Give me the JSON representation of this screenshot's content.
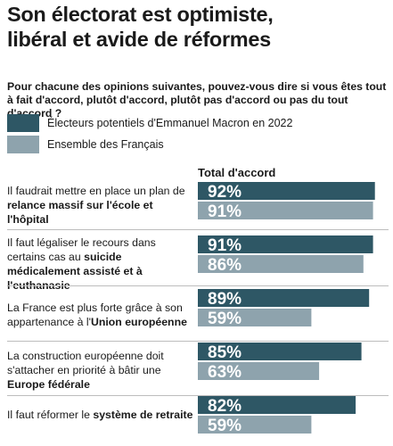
{
  "title": [
    "Son électorat est optimiste,",
    "libéral et avide de réformes"
  ],
  "question": "Pour chacune des opinions suivantes, pouvez-vous dire si vous êtes tout à fait d'accord, plutôt d'accord, plutôt pas d'accord ou pas du tout d'accord ?",
  "colors": {
    "macron": "#2e5765",
    "france": "#8ea3ad"
  },
  "chart_data": {
    "type": "bar",
    "orientation": "horizontal",
    "header": "Total d'accord",
    "xlim": [
      0,
      100
    ],
    "categories": [
      [
        {
          "t": "Il faudrait mettre en place un plan de "
        },
        {
          "t": "relance massif sur l'école et l'hôpital",
          "b": true
        }
      ],
      [
        {
          "t": "Il faut légaliser le recours dans certains cas au "
        },
        {
          "t": "suicide médicalement assisté et à l'euthanasie",
          "b": true
        }
      ],
      [
        {
          "t": "La France est plus forte grâce à son appartenance à l'"
        },
        {
          "t": "Union européenne",
          "b": true
        }
      ],
      [
        {
          "t": "La construction européenne doit s'attacher en priorité à bâtir une "
        },
        {
          "t": "Europe fédérale",
          "b": true
        }
      ],
      [
        {
          "t": "Il faut réformer le "
        },
        {
          "t": "système de retraite",
          "b": true
        }
      ]
    ],
    "series": [
      {
        "name": "Électeurs potentiels d'Emmanuel Macron en 2022",
        "values": [
          92,
          91,
          89,
          85,
          82
        ],
        "color": "#2e5765"
      },
      {
        "name": "Ensemble des Français",
        "values": [
          91,
          86,
          59,
          63,
          59
        ],
        "color": "#8ea3ad"
      }
    ],
    "value_suffix": "%"
  }
}
